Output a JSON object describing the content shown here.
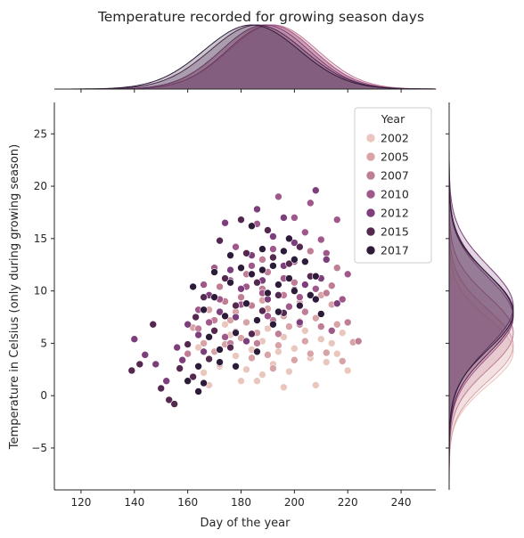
{
  "chart_data": {
    "type": "scatter",
    "title": "Temperature recorded for growing season days",
    "xlabel": "Day of the year",
    "ylabel": "Temperature in Celsius (only during growing season)",
    "xlim": [
      110,
      253
    ],
    "ylim": [
      -9,
      28
    ],
    "xticks": [
      "120",
      "140",
      "160",
      "180",
      "200",
      "220",
      "240"
    ],
    "yticks": [
      "−5",
      "0",
      "5",
      "10",
      "15",
      "20",
      "25"
    ],
    "xtick_values": [
      120,
      140,
      160,
      180,
      200,
      220,
      240
    ],
    "ytick_values": [
      -5,
      0,
      5,
      10,
      15,
      20,
      25
    ],
    "grid": false,
    "legend": {
      "title": "Year",
      "placement": "top-right",
      "entries": [
        "2002",
        "2005",
        "2007",
        "2010",
        "2012",
        "2015",
        "2017"
      ]
    },
    "series_colors": {
      "2002": "#eac7bd",
      "2005": "#d7a3a6",
      "2007": "#c07d96",
      "2010": "#a0588a",
      "2012": "#7d3f7b",
      "2015": "#54284f",
      "2017": "#2d1b3a"
    },
    "marginal_x": {
      "type": "kde",
      "series": {
        "2002": {
          "mean": 190,
          "sd": 16.5
        },
        "2005": {
          "mean": 191,
          "sd": 16.2
        },
        "2007": {
          "mean": 192,
          "sd": 16.6
        },
        "2010": {
          "mean": 191,
          "sd": 16.2
        },
        "2012": {
          "mean": 189,
          "sd": 16.4
        },
        "2015": {
          "mean": 186,
          "sd": 17.5
        },
        "2017": {
          "mean": 184,
          "sd": 17.8
        }
      }
    },
    "marginal_y": {
      "type": "kde",
      "series": {
        "2002": {
          "mean": 4.2,
          "sd": 3.2
        },
        "2005": {
          "mean": 4.8,
          "sd": 3.4
        },
        "2007": {
          "mean": 6.0,
          "sd": 3.5
        },
        "2010": {
          "mean": 7.5,
          "sd": 3.8
        },
        "2012": {
          "mean": 8.5,
          "sd": 3.9
        },
        "2015": {
          "mean": 7.8,
          "sd": 3.8
        },
        "2017": {
          "mean": 8.0,
          "sd": 3.6
        }
      }
    },
    "series": [
      {
        "name": "2002",
        "points": [
          [
            168,
            1.0
          ],
          [
            172,
            2.8
          ],
          [
            178,
            3.8
          ],
          [
            184,
            4.4
          ],
          [
            188,
            2.0
          ],
          [
            192,
            3.0
          ],
          [
            196,
            5.6
          ],
          [
            200,
            4.5
          ],
          [
            204,
            6.2
          ],
          [
            208,
            1.0
          ],
          [
            212,
            3.2
          ],
          [
            216,
            4.0
          ],
          [
            220,
            2.4
          ],
          [
            176,
            5.8
          ],
          [
            182,
            2.5
          ],
          [
            190,
            6.4
          ],
          [
            198,
            2.3
          ],
          [
            206,
            3.6
          ],
          [
            214,
            5.0
          ],
          [
            186,
            1.4
          ],
          [
            194,
            4.2
          ],
          [
            202,
            7.1
          ],
          [
            166,
            2.2
          ],
          [
            174,
            6.8
          ],
          [
            180,
            1.4
          ],
          [
            210,
            5.4
          ],
          [
            164,
            4.6
          ],
          [
            218,
            6.0
          ],
          [
            188,
            5.2
          ],
          [
            196,
            0.8
          ]
        ]
      },
      {
        "name": "2005",
        "points": [
          [
            162,
            6.5
          ],
          [
            166,
            5.0
          ],
          [
            170,
            4.2
          ],
          [
            176,
            7.2
          ],
          [
            180,
            5.5
          ],
          [
            186,
            6.0
          ],
          [
            190,
            8.3
          ],
          [
            194,
            4.8
          ],
          [
            198,
            6.6
          ],
          [
            204,
            5.2
          ],
          [
            208,
            7.4
          ],
          [
            212,
            4.1
          ],
          [
            216,
            6.8
          ],
          [
            222,
            5.1
          ],
          [
            184,
            3.6
          ],
          [
            178,
            8.0
          ],
          [
            188,
            9.1
          ],
          [
            200,
            3.4
          ],
          [
            210,
            9.6
          ],
          [
            172,
            3.0
          ],
          [
            192,
            2.6
          ],
          [
            206,
            4.0
          ],
          [
            196,
            7.6
          ],
          [
            182,
            7.0
          ],
          [
            168,
            8.2
          ],
          [
            214,
            8.7
          ],
          [
            174,
            4.9
          ],
          [
            202,
            8.9
          ],
          [
            190,
            3.9
          ],
          [
            218,
            3.3
          ]
        ]
      },
      {
        "name": "2007",
        "points": [
          [
            160,
            4.0
          ],
          [
            164,
            6.4
          ],
          [
            170,
            7.2
          ],
          [
            174,
            9.0
          ],
          [
            178,
            6.1
          ],
          [
            184,
            8.6
          ],
          [
            188,
            10.2
          ],
          [
            192,
            7.2
          ],
          [
            196,
            9.6
          ],
          [
            200,
            10.8
          ],
          [
            204,
            8.0
          ],
          [
            208,
            11.4
          ],
          [
            212,
            9.8
          ],
          [
            216,
            12.2
          ],
          [
            220,
            7.0
          ],
          [
            224,
            5.2
          ],
          [
            186,
            5.0
          ],
          [
            176,
            5.0
          ],
          [
            190,
            11.8
          ],
          [
            198,
            12.6
          ],
          [
            206,
            13.8
          ],
          [
            214,
            10.5
          ],
          [
            180,
            9.4
          ],
          [
            194,
            5.9
          ],
          [
            202,
            6.8
          ],
          [
            168,
            3.5
          ],
          [
            182,
            11.6
          ],
          [
            210,
            6.6
          ],
          [
            188,
            13.0
          ],
          [
            172,
            10.4
          ]
        ]
      },
      {
        "name": "2010",
        "points": [
          [
            164,
            8.2
          ],
          [
            168,
            7.0
          ],
          [
            172,
            9.2
          ],
          [
            176,
            11.0
          ],
          [
            180,
            8.7
          ],
          [
            184,
            12.4
          ],
          [
            188,
            9.8
          ],
          [
            192,
            14.0
          ],
          [
            196,
            11.2
          ],
          [
            200,
            12.8
          ],
          [
            204,
            15.6
          ],
          [
            208,
            10.2
          ],
          [
            212,
            13.6
          ],
          [
            216,
            16.8
          ],
          [
            220,
            11.6
          ],
          [
            214,
            6.2
          ],
          [
            194,
            19.0
          ],
          [
            200,
            17.0
          ],
          [
            178,
            14.2
          ],
          [
            186,
            16.4
          ],
          [
            206,
            18.4
          ],
          [
            190,
            7.6
          ],
          [
            170,
            12.2
          ],
          [
            198,
            8.5
          ],
          [
            182,
            10.4
          ],
          [
            210,
            14.9
          ],
          [
            174,
            5.6
          ],
          [
            166,
            10.6
          ],
          [
            202,
            9.4
          ],
          [
            218,
            9.2
          ]
        ]
      },
      {
        "name": "2012",
        "points": [
          [
            140,
            5.4
          ],
          [
            144,
            3.9
          ],
          [
            148,
            3.0
          ],
          [
            152,
            1.4
          ],
          [
            156,
            4.6
          ],
          [
            160,
            6.8
          ],
          [
            164,
            5.8
          ],
          [
            168,
            9.6
          ],
          [
            172,
            8.0
          ],
          [
            176,
            12.0
          ],
          [
            180,
            10.2
          ],
          [
            184,
            13.4
          ],
          [
            188,
            11.0
          ],
          [
            192,
            15.2
          ],
          [
            196,
            12.4
          ],
          [
            200,
            14.6
          ],
          [
            204,
            10.6
          ],
          [
            208,
            19.6
          ],
          [
            212,
            13.0
          ],
          [
            216,
            8.8
          ],
          [
            174,
            16.5
          ],
          [
            186,
            17.8
          ],
          [
            196,
            17.0
          ],
          [
            178,
            7.5
          ],
          [
            190,
            9.2
          ],
          [
            202,
            7.0
          ],
          [
            166,
            4.2
          ],
          [
            158,
            3.4
          ],
          [
            210,
            11.2
          ],
          [
            182,
            5.2
          ]
        ]
      },
      {
        "name": "2015",
        "points": [
          [
            139,
            2.4
          ],
          [
            142,
            3.0
          ],
          [
            147,
            6.8
          ],
          [
            150,
            0.7
          ],
          [
            153,
            -0.4
          ],
          [
            157,
            2.6
          ],
          [
            160,
            4.9
          ],
          [
            163,
            7.5
          ],
          [
            166,
            9.4
          ],
          [
            170,
            6.2
          ],
          [
            174,
            11.2
          ],
          [
            178,
            8.6
          ],
          [
            182,
            13.6
          ],
          [
            186,
            10.8
          ],
          [
            190,
            15.8
          ],
          [
            194,
            9.6
          ],
          [
            198,
            12.6
          ],
          [
            202,
            14.2
          ],
          [
            206,
            11.4
          ],
          [
            172,
            14.8
          ],
          [
            180,
            16.8
          ],
          [
            192,
            13.2
          ],
          [
            184,
            5.9
          ],
          [
            196,
            7.9
          ],
          [
            168,
            3.5
          ],
          [
            176,
            4.6
          ],
          [
            188,
            8.1
          ],
          [
            200,
            10.1
          ],
          [
            162,
            1.8
          ],
          [
            155,
            -0.8
          ]
        ]
      },
      {
        "name": "2017",
        "points": [
          [
            160,
            1.4
          ],
          [
            162,
            10.4
          ],
          [
            164,
            2.8
          ],
          [
            166,
            8.2
          ],
          [
            168,
            5.6
          ],
          [
            170,
            9.4
          ],
          [
            172,
            3.2
          ],
          [
            174,
            7.6
          ],
          [
            176,
            10.8
          ],
          [
            178,
            6.0
          ],
          [
            180,
            12.2
          ],
          [
            182,
            8.8
          ],
          [
            184,
            11.6
          ],
          [
            186,
            7.2
          ],
          [
            188,
            14.0
          ],
          [
            190,
            9.8
          ],
          [
            192,
            12.4
          ],
          [
            194,
            10.6
          ],
          [
            196,
            13.8
          ],
          [
            198,
            11.2
          ],
          [
            200,
            10.0
          ],
          [
            202,
            8.6
          ],
          [
            204,
            12.8
          ],
          [
            206,
            9.6
          ],
          [
            208,
            11.4
          ],
          [
            210,
            7.8
          ],
          [
            166,
            1.2
          ],
          [
            172,
            4.4
          ],
          [
            178,
            2.8
          ],
          [
            186,
            4.2
          ],
          [
            192,
            6.8
          ],
          [
            198,
            15.0
          ],
          [
            184,
            16.2
          ],
          [
            176,
            13.4
          ],
          [
            170,
            11.8
          ],
          [
            164,
            0.4
          ],
          [
            188,
            12.0
          ],
          [
            194,
            8.0
          ],
          [
            200,
            13.0
          ],
          [
            208,
            9.2
          ]
        ]
      }
    ]
  }
}
